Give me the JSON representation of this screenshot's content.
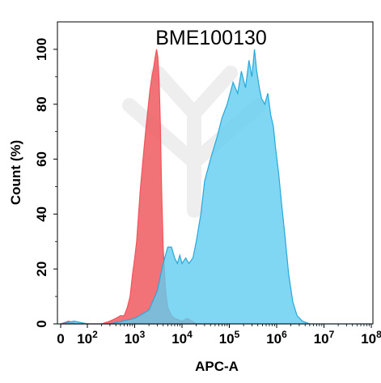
{
  "chart_data": {
    "type": "area",
    "title": "BME100130",
    "xlabel": "APC-A",
    "ylabel": "Count  (%)",
    "x_scale": "log",
    "xlim": [
      0,
      100000000
    ],
    "ylim": [
      0,
      110
    ],
    "grid": false,
    "x_ticks": [
      {
        "value": 0,
        "base": "0",
        "exp": ""
      },
      {
        "value": 100,
        "base": "10",
        "exp": "2"
      },
      {
        "value": 1000,
        "base": "10",
        "exp": "3"
      },
      {
        "value": 10000,
        "base": "10",
        "exp": "4"
      },
      {
        "value": 100000,
        "base": "10",
        "exp": "5"
      },
      {
        "value": 1000000,
        "base": "10",
        "exp": "6"
      },
      {
        "value": 10000000,
        "base": "10",
        "exp": "7"
      },
      {
        "value": 100000000,
        "base": "10",
        "exp": "8"
      }
    ],
    "y_ticks": [
      0,
      20,
      40,
      60,
      80,
      100
    ],
    "series": [
      {
        "color": "#f0555a",
        "fill": "#f05a5f",
        "points": [
          [
            0,
            0
          ],
          [
            30,
            1
          ],
          [
            60,
            0
          ],
          [
            100,
            0
          ],
          [
            200,
            0
          ],
          [
            300,
            1
          ],
          [
            400,
            2
          ],
          [
            500,
            3
          ],
          [
            600,
            3
          ],
          [
            700,
            6
          ],
          [
            800,
            10
          ],
          [
            900,
            18
          ],
          [
            1000,
            24
          ],
          [
            1100,
            30
          ],
          [
            1300,
            48
          ],
          [
            1500,
            60
          ],
          [
            1700,
            70
          ],
          [
            1900,
            78
          ],
          [
            2100,
            85
          ],
          [
            2300,
            90
          ],
          [
            2500,
            93
          ],
          [
            2700,
            97
          ],
          [
            2900,
            100
          ],
          [
            3100,
            97
          ],
          [
            3300,
            88
          ],
          [
            3500,
            72
          ],
          [
            3700,
            50
          ],
          [
            4000,
            28
          ],
          [
            4500,
            12
          ],
          [
            5000,
            6
          ],
          [
            6000,
            3
          ],
          [
            7000,
            2
          ],
          [
            10000,
            1
          ],
          [
            13000,
            2
          ],
          [
            20000,
            0
          ],
          [
            100000,
            0
          ]
        ]
      },
      {
        "color": "#29a8d8",
        "fill": "#5fcdf0",
        "points": [
          [
            0,
            0
          ],
          [
            50,
            1
          ],
          [
            100,
            0
          ],
          [
            300,
            0
          ],
          [
            1000,
            2
          ],
          [
            2000,
            5
          ],
          [
            3000,
            12
          ],
          [
            4000,
            22
          ],
          [
            5000,
            28
          ],
          [
            6000,
            28
          ],
          [
            7000,
            24
          ],
          [
            8000,
            22
          ],
          [
            9000,
            25
          ],
          [
            10000,
            22
          ],
          [
            12000,
            24
          ],
          [
            14000,
            22
          ],
          [
            17000,
            24
          ],
          [
            20000,
            30
          ],
          [
            25000,
            40
          ],
          [
            30000,
            52
          ],
          [
            40000,
            60
          ],
          [
            55000,
            68
          ],
          [
            70000,
            75
          ],
          [
            90000,
            80
          ],
          [
            120000,
            88
          ],
          [
            150000,
            84
          ],
          [
            180000,
            92
          ],
          [
            220000,
            86
          ],
          [
            260000,
            96
          ],
          [
            300000,
            90
          ],
          [
            340000,
            100
          ],
          [
            380000,
            92
          ],
          [
            430000,
            86
          ],
          [
            480000,
            82
          ],
          [
            560000,
            80
          ],
          [
            650000,
            84
          ],
          [
            750000,
            76
          ],
          [
            850000,
            72
          ],
          [
            950000,
            64
          ],
          [
            1100000,
            55
          ],
          [
            1300000,
            42
          ],
          [
            1500000,
            32
          ],
          [
            1800000,
            18
          ],
          [
            2200000,
            8
          ],
          [
            2700000,
            3
          ],
          [
            3500000,
            1
          ],
          [
            5000000,
            0
          ],
          [
            100000000,
            0
          ]
        ]
      }
    ]
  }
}
